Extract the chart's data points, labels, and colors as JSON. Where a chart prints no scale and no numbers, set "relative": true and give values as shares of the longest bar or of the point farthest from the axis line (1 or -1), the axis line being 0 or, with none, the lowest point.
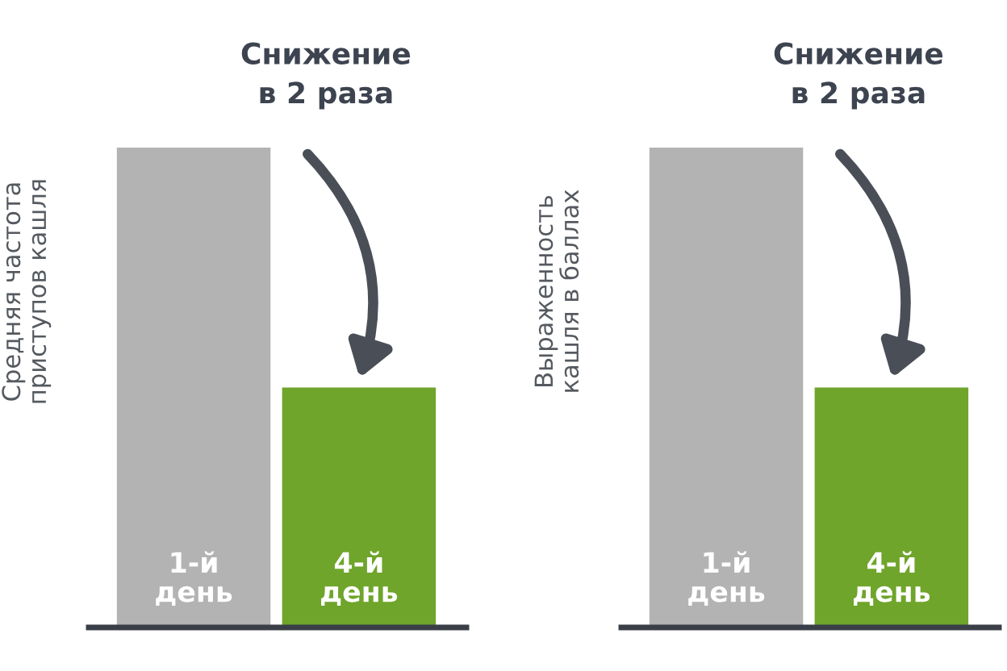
{
  "chart_data": [
    {
      "type": "bar",
      "relative": true,
      "ylabel": "Средняя частота\nприступов кашля",
      "categories": [
        "1-й\nдень",
        "4-й\nдень"
      ],
      "values": [
        1,
        0.5
      ],
      "colors": [
        "#b3b3b3",
        "#6fa52b"
      ],
      "annotations": [
        "Снижение\nв 2 раза"
      ]
    },
    {
      "type": "bar",
      "relative": true,
      "ylabel": "Выраженность\nкашля в баллах",
      "categories": [
        "1-й\nдень",
        "4-й\nдень"
      ],
      "values": [
        1,
        0.5
      ],
      "colors": [
        "#b3b3b3",
        "#6fa52b"
      ],
      "annotations": [
        "Снижение\nв 2 раза"
      ]
    }
  ]
}
